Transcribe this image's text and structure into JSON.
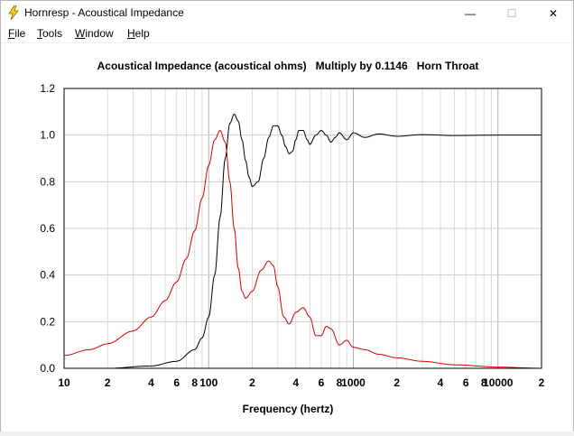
{
  "window": {
    "title": "Hornresp - Acoustical Impedance",
    "minimize_glyph": "—",
    "maximize_glyph": "☐",
    "close_glyph": "✕",
    "icon": "lightning-bolt-icon"
  },
  "menu": {
    "items": [
      {
        "mnemonic": "F",
        "rest": "ile"
      },
      {
        "mnemonic": "T",
        "rest": "ools"
      },
      {
        "mnemonic": "W",
        "rest": "indow"
      },
      {
        "mnemonic": "H",
        "rest": "elp"
      }
    ]
  },
  "chart_data": {
    "type": "line",
    "title": "Acoustical Impedance (acoustical ohms)   Multiply by 0.1146   Horn Throat",
    "xlabel": "Frequency (hertz)",
    "ylabel": "",
    "xscale": "log",
    "xlim": [
      10,
      20000
    ],
    "ylim": [
      0,
      1.2
    ],
    "y_ticks": [
      "0.0",
      "0.2",
      "0.4",
      "0.6",
      "0.8",
      "1.0",
      "1.2"
    ],
    "x_tick_labels": [
      {
        "value": 10,
        "label": "10"
      },
      {
        "value": 20,
        "label": "2"
      },
      {
        "value": 40,
        "label": "4"
      },
      {
        "value": 60,
        "label": "6"
      },
      {
        "value": 80,
        "label": "8"
      },
      {
        "value": 100,
        "label": "100"
      },
      {
        "value": 200,
        "label": "2"
      },
      {
        "value": 400,
        "label": "4"
      },
      {
        "value": 600,
        "label": "6"
      },
      {
        "value": 800,
        "label": "8"
      },
      {
        "value": 1000,
        "label": "1000"
      },
      {
        "value": 2000,
        "label": "2"
      },
      {
        "value": 4000,
        "label": "4"
      },
      {
        "value": 6000,
        "label": "6"
      },
      {
        "value": 8000,
        "label": "8"
      },
      {
        "value": 10000,
        "label": "10000"
      },
      {
        "value": 20000,
        "label": "2"
      }
    ],
    "grid": true,
    "series": [
      {
        "color": "#000000",
        "x": [
          10,
          20,
          40,
          60,
          80,
          90,
          100,
          110,
          120,
          130,
          140,
          150,
          160,
          170,
          180,
          190,
          200,
          220,
          240,
          260,
          280,
          300,
          320,
          340,
          360,
          380,
          400,
          420,
          450,
          480,
          500,
          550,
          600,
          650,
          700,
          750,
          800,
          900,
          1000,
          1200,
          1500,
          2000,
          3000,
          5000,
          10000,
          20000
        ],
        "y": [
          0.0,
          0.0,
          0.01,
          0.03,
          0.08,
          0.13,
          0.22,
          0.4,
          0.65,
          0.9,
          1.05,
          1.09,
          1.06,
          0.98,
          0.89,
          0.82,
          0.78,
          0.8,
          0.9,
          0.99,
          1.04,
          1.04,
          1.0,
          0.95,
          0.92,
          0.93,
          0.98,
          1.02,
          1.02,
          0.98,
          0.96,
          1.0,
          1.02,
          1.0,
          0.97,
          0.99,
          1.01,
          0.98,
          1.01,
          0.99,
          1.005,
          0.995,
          1.002,
          0.998,
          1.0,
          1.0
        ]
      },
      {
        "color": "#d00000",
        "x": [
          10,
          15,
          20,
          30,
          40,
          50,
          60,
          70,
          80,
          90,
          100,
          110,
          120,
          130,
          140,
          150,
          160,
          170,
          180,
          200,
          230,
          260,
          280,
          300,
          330,
          360,
          400,
          450,
          500,
          550,
          600,
          650,
          700,
          800,
          900,
          1000,
          1200,
          1500,
          2000,
          3000,
          5000,
          10000,
          20000
        ],
        "y": [
          0.055,
          0.08,
          0.105,
          0.16,
          0.22,
          0.29,
          0.37,
          0.47,
          0.59,
          0.73,
          0.87,
          0.98,
          1.02,
          0.97,
          0.8,
          0.6,
          0.43,
          0.33,
          0.3,
          0.33,
          0.42,
          0.46,
          0.44,
          0.35,
          0.22,
          0.19,
          0.24,
          0.26,
          0.22,
          0.14,
          0.14,
          0.18,
          0.17,
          0.1,
          0.12,
          0.09,
          0.08,
          0.06,
          0.045,
          0.03,
          0.015,
          0.005,
          0.0
        ]
      }
    ]
  }
}
